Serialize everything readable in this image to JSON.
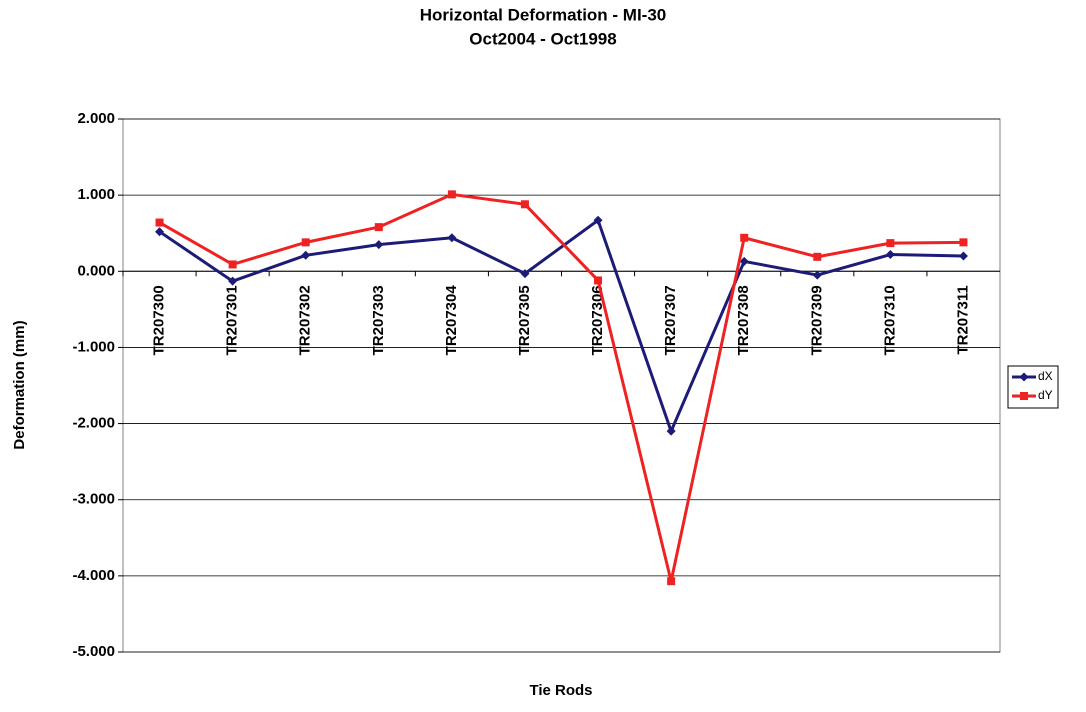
{
  "chart_data": {
    "type": "line",
    "title": "Horizontal Deformation - MI-30",
    "subtitle": "Oct2004 - Oct1998",
    "x_label": "Tie Rods",
    "y_label": "Deformation (mm)",
    "categories": [
      "TR207300",
      "TR207301",
      "TR207302",
      "TR207303",
      "TR207304",
      "TR207305",
      "TR207306",
      "TR207307",
      "TR207308",
      "TR207309",
      "TR207310",
      "TR207311"
    ],
    "series": [
      {
        "name": "dX",
        "color": "#1c1c78",
        "marker": "diamond",
        "values": [
          0.52,
          -0.13,
          0.21,
          0.35,
          0.44,
          -0.03,
          0.67,
          -2.1,
          0.13,
          -0.05,
          0.22,
          0.2
        ]
      },
      {
        "name": "dY",
        "color": "#ee2222",
        "marker": "square",
        "values": [
          0.64,
          0.09,
          0.38,
          0.58,
          1.01,
          0.88,
          -0.12,
          -4.07,
          0.44,
          0.19,
          0.37,
          0.38
        ]
      }
    ],
    "ylim": [
      -5,
      2
    ],
    "yticks": [
      {
        "value": -5,
        "label": "-5.000"
      },
      {
        "value": -4,
        "label": "-4.000"
      },
      {
        "value": -3,
        "label": "-3.000"
      },
      {
        "value": -2,
        "label": "-2.000"
      },
      {
        "value": -1,
        "label": "-1.000"
      },
      {
        "value": 0,
        "label": "0.000"
      },
      {
        "value": 1,
        "label": "1.000"
      },
      {
        "value": 2,
        "label": "2.000"
      }
    ],
    "grid": true,
    "legend": "right"
  }
}
